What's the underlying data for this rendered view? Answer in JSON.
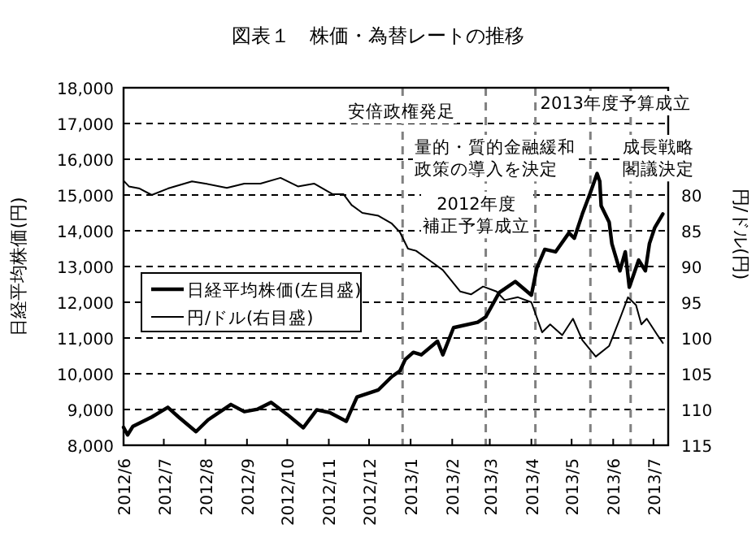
{
  "chart_data": {
    "type": "line",
    "title": "図表１　株価・為替レートの推移",
    "ylabel": "日経平均株価(円)",
    "y2label": "円/ドル(円)",
    "xlim": [
      "2012-06-01",
      "2013-07-12"
    ],
    "xticks": [
      {
        "value": "2012-06",
        "label": "2012/6"
      },
      {
        "value": "2012-07",
        "label": "2012/7"
      },
      {
        "value": "2012-08",
        "label": "2012/8"
      },
      {
        "value": "2012-09",
        "label": "2012/9"
      },
      {
        "value": "2012-10",
        "label": "2012/10"
      },
      {
        "value": "2012-11",
        "label": "2012/11"
      },
      {
        "value": "2012-12",
        "label": "2012/12"
      },
      {
        "value": "2013-01",
        "label": "2013/1"
      },
      {
        "value": "2013-02",
        "label": "2013/2"
      },
      {
        "value": "2013-03",
        "label": "2013/3"
      },
      {
        "value": "2013-04",
        "label": "2013/4"
      },
      {
        "value": "2013-05",
        "label": "2013/5"
      },
      {
        "value": "2013-06",
        "label": "2013/6"
      },
      {
        "value": "2013-07",
        "label": "2013/7"
      }
    ],
    "ylim": [
      8000,
      18000
    ],
    "yticks": [
      {
        "value": 8000,
        "label": "8,000"
      },
      {
        "value": 9000,
        "label": "9,000"
      },
      {
        "value": 10000,
        "label": "10,000"
      },
      {
        "value": 11000,
        "label": "11,000"
      },
      {
        "value": 12000,
        "label": "12,000"
      },
      {
        "value": 13000,
        "label": "13,000"
      },
      {
        "value": 14000,
        "label": "14,000"
      },
      {
        "value": 15000,
        "label": "15,000"
      },
      {
        "value": 16000,
        "label": "16,000"
      },
      {
        "value": 17000,
        "label": "17,000"
      },
      {
        "value": 18000,
        "label": "18,000"
      }
    ],
    "y2lim": [
      115,
      65
    ],
    "y2ticks": [
      80,
      85,
      90,
      95,
      100,
      105,
      110,
      115
    ],
    "grid": "y",
    "legend": "left",
    "line_style": "solid",
    "series": [
      {
        "name": "日経平均株価(左目盛)",
        "color": "#000000",
        "axis": "y",
        "x": [
          "2012-06-01",
          "2012-06-04",
          "2012-06-08",
          "2012-06-22",
          "2012-07-04",
          "2012-07-12",
          "2012-07-25",
          "2012-08-03",
          "2012-08-20",
          "2012-08-30",
          "2012-09-09",
          "2012-09-19",
          "2012-10-01",
          "2012-10-13",
          "2012-10-23",
          "2012-11-02",
          "2012-11-14",
          "2012-11-22",
          "2012-12-08",
          "2012-12-18",
          "2012-12-24",
          "2012-12-28",
          "2013-01-03",
          "2013-01-09",
          "2013-01-21",
          "2013-01-25",
          "2013-02-02",
          "2013-02-20",
          "2013-02-26",
          "2013-03-08",
          "2013-03-20",
          "2013-04-01",
          "2013-04-05",
          "2013-04-11",
          "2013-04-19",
          "2013-04-29",
          "2013-05-03",
          "2013-05-09",
          "2013-05-15",
          "2013-05-20",
          "2013-05-22",
          "2013-05-23",
          "2013-05-29",
          "2013-05-31",
          "2013-06-06",
          "2013-06-10",
          "2013-06-13",
          "2013-06-20",
          "2013-06-25",
          "2013-06-28",
          "2013-07-02",
          "2013-07-08"
        ],
        "values": [
          8500,
          8290,
          8530,
          8790,
          9060,
          8790,
          8380,
          8710,
          9140,
          8940,
          9010,
          9200,
          8860,
          8490,
          8990,
          8910,
          8670,
          9350,
          9550,
          9920,
          10080,
          10400,
          10600,
          10530,
          10910,
          10530,
          11290,
          11440,
          11590,
          12270,
          12580,
          12200,
          12950,
          13480,
          13410,
          13940,
          13790,
          14470,
          15070,
          15600,
          15380,
          14700,
          14240,
          13640,
          12880,
          13410,
          12420,
          13180,
          12880,
          13640,
          14090,
          14470
        ]
      },
      {
        "name": "円/ドル(右目盛)",
        "color": "#000000",
        "axis": "y2",
        "x": [
          "2012-06-01",
          "2012-06-05",
          "2012-06-13",
          "2012-06-22",
          "2012-07-04",
          "2012-07-22",
          "2012-08-01",
          "2012-08-17",
          "2012-08-30",
          "2012-09-11",
          "2012-09-26",
          "2012-10-09",
          "2012-10-21",
          "2012-11-04",
          "2012-11-12",
          "2012-11-18",
          "2012-11-26",
          "2012-12-08",
          "2012-12-18",
          "2012-12-24",
          "2012-12-30",
          "2013-01-05",
          "2013-01-17",
          "2013-01-25",
          "2013-02-07",
          "2013-02-15",
          "2013-02-24",
          "2013-03-06",
          "2013-03-12",
          "2013-03-22",
          "2013-04-01",
          "2013-04-09",
          "2013-04-15",
          "2013-04-24",
          "2013-05-02",
          "2013-05-09",
          "2013-05-19",
          "2013-05-29",
          "2013-06-06",
          "2013-06-12",
          "2013-06-18",
          "2013-06-22",
          "2013-06-26",
          "2013-07-04",
          "2013-07-08"
        ],
        "values": [
          78.0,
          78.8,
          79.1,
          80.0,
          79.1,
          78.1,
          78.4,
          79.0,
          78.4,
          78.4,
          77.6,
          78.8,
          78.4,
          79.9,
          79.9,
          81.4,
          82.5,
          82.9,
          84.0,
          85.2,
          87.5,
          87.8,
          89.4,
          90.5,
          93.5,
          93.9,
          92.8,
          93.5,
          94.7,
          94.3,
          95.0,
          99.2,
          98.1,
          99.6,
          97.3,
          100.3,
          102.6,
          101.1,
          97.3,
          94.3,
          95.4,
          98.1,
          97.3,
          99.6,
          100.7
        ]
      }
    ],
    "ref_lines": [
      {
        "axis": "x",
        "value": "2012-12-26",
        "label": "安倍政権発足",
        "color": "#808080",
        "line_style": "dashed"
      },
      {
        "axis": "x",
        "value": "2013-02-26",
        "label": "2012年度補正予算成立",
        "color": "#808080",
        "line_style": "dashed"
      },
      {
        "axis": "x",
        "value": "2013-04-04",
        "label": "量的・質的金融緩和政策の導入を決定",
        "color": "#808080",
        "line_style": "dashed"
      },
      {
        "axis": "x",
        "value": "2013-05-15",
        "label": "2013年度予算成立",
        "color": "#808080",
        "line_style": "dashed"
      },
      {
        "axis": "x",
        "value": "2013-06-14",
        "label": "成長戦略閣議決定",
        "color": "#808080",
        "line_style": "dashed"
      }
    ]
  }
}
